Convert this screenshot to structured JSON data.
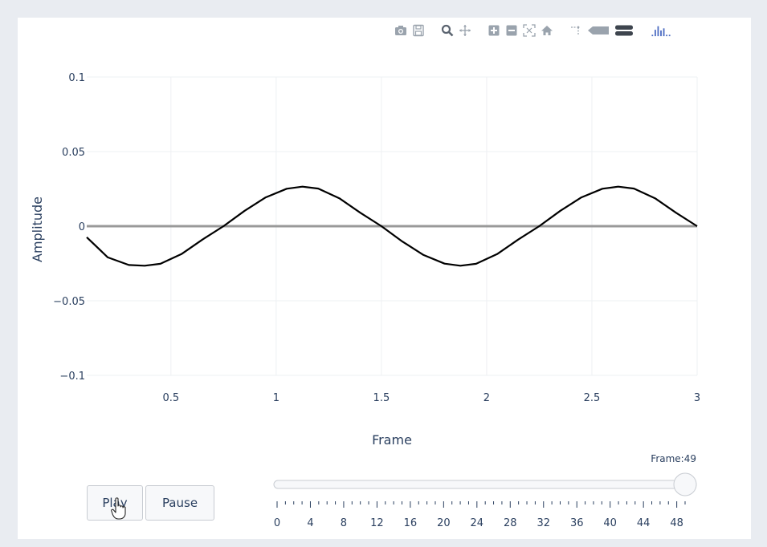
{
  "toolbar": {
    "icons": [
      "camera-icon",
      "save-icon",
      "zoom-icon",
      "pan-icon",
      "zoom-in-icon",
      "zoom-out-icon",
      "autoscale-icon",
      "home-icon",
      "spike-lines-icon",
      "hover-closest-icon",
      "hover-compare-icon",
      "plotly-logo-icon"
    ]
  },
  "controls": {
    "play_label": "Play",
    "pause_label": "Pause"
  },
  "slider": {
    "current_label": "Frame:49",
    "value": 49,
    "min": 0,
    "max": 49,
    "tick_labels": [
      "0",
      "4",
      "8",
      "12",
      "16",
      "20",
      "24",
      "28",
      "32",
      "36",
      "40",
      "44",
      "48"
    ]
  },
  "chart_data": {
    "type": "line",
    "title": "",
    "xlabel": "Frame",
    "ylabel": "Amplitude",
    "xlim": [
      0.1,
      3
    ],
    "ylim": [
      -0.1,
      0.1
    ],
    "x_tick_labels": [
      "0.5",
      "1",
      "1.5",
      "2",
      "2.5",
      "3"
    ],
    "x_ticks": [
      0.5,
      1,
      1.5,
      2,
      2.5,
      3
    ],
    "y_tick_labels": [
      "0.1",
      "0.05",
      "0",
      "−0.05",
      "−0.1"
    ],
    "y_ticks": [
      0.1,
      0.05,
      0,
      -0.05,
      -0.1
    ],
    "grid": true,
    "series": [
      {
        "color": "#000000",
        "x": [
          0.1,
          0.2,
          0.3,
          0.375,
          0.45,
          0.55,
          0.65,
          0.75,
          0.85,
          0.95,
          1.05,
          1.125,
          1.2,
          1.3,
          1.4,
          1.5,
          1.6,
          1.7,
          1.8,
          1.875,
          1.95,
          2.05,
          2.15,
          2.25,
          2.35,
          2.45,
          2.55,
          2.625,
          2.7,
          2.8,
          2.9,
          3.0
        ],
        "y": [
          -0.0074,
          -0.0209,
          -0.026,
          -0.0265,
          -0.0252,
          -0.0187,
          -0.009,
          0.0,
          0.0103,
          0.0193,
          0.0251,
          0.0265,
          0.0252,
          0.0187,
          0.009,
          0.0,
          -0.0103,
          -0.0193,
          -0.0251,
          -0.0265,
          -0.0252,
          -0.0187,
          -0.009,
          0.0,
          0.0103,
          0.0193,
          0.0251,
          0.0265,
          0.0252,
          0.0187,
          0.009,
          0.0
        ]
      },
      {
        "color": "#999999",
        "x": [
          0.1,
          3.0
        ],
        "y": [
          0,
          0
        ]
      }
    ]
  }
}
